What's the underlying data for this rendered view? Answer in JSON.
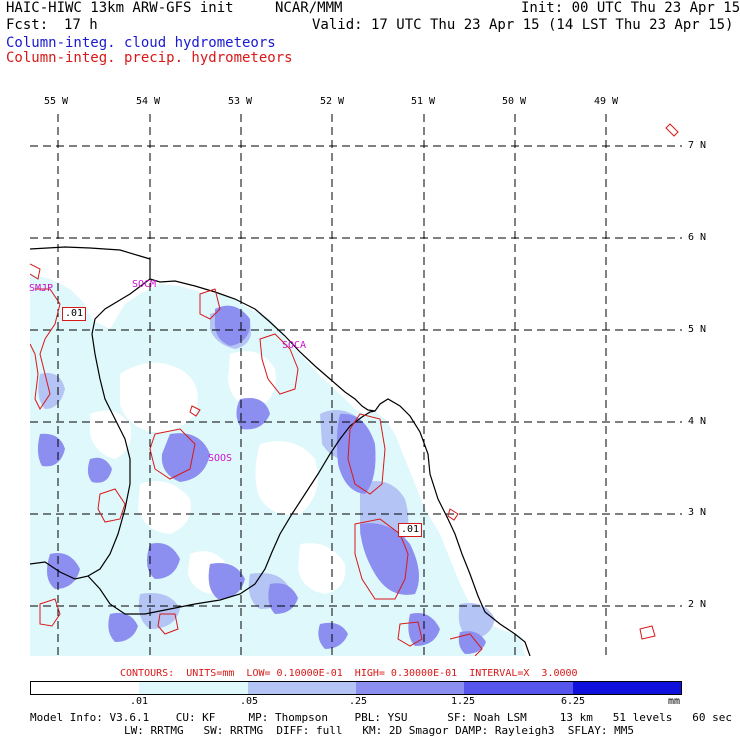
{
  "header": {
    "title": "HAIC-HIWC 13km ARW-GFS init",
    "org": "NCAR/MMM",
    "init": "Init: 00 UTC Thu 23 Apr 15",
    "fcst_label": "Fcst:",
    "fcst_value": "17 h",
    "valid": "Valid: 17 UTC Thu 23 Apr 15 (14 LST Thu 23 Apr 15)",
    "cloud_label": "Column-integ. cloud hydrometeors",
    "precip_label": "Column-integ. precip. hydrometeors"
  },
  "map": {
    "longitude_labels": [
      "55 W",
      "54 W",
      "53 W",
      "52 W",
      "51 W",
      "50 W",
      "49 W"
    ],
    "latitude_labels": [
      "7 N",
      "6 N",
      "5 N",
      "4 N",
      "3 N",
      "2 N"
    ],
    "stations": [
      "SMJP",
      "SOCM",
      "SOCA",
      "SOOS"
    ],
    "contour_labels": [
      ".01",
      ".01"
    ],
    "colors": {
      "border": "#000000",
      "grid": "#000000",
      "precip_contour": "#d81818",
      "station_text": "#cc11cc",
      "shade_1": "#dff8fb",
      "shade_2": "#b4c4f4",
      "shade_3": "#8c8ff0"
    }
  },
  "footer": {
    "contours": "CONTOURS:  UNITS=mm  LOW= 0.10000E-01  HIGH= 0.30000E-01  INTERVAL=X  3.0000",
    "colorbar": {
      "ticks": [
        ".01",
        ".05",
        ".25",
        "1.25",
        "6.25"
      ],
      "units": "mm",
      "colors": [
        "#ffffff",
        "#dff8fb",
        "#b4c4f4",
        "#8c8ff0",
        "#5555ee",
        "#1111dd"
      ]
    },
    "model_info_1": "Model Info: V3.6.1    CU: KF     MP: Thompson    PBL: YSU      SF: Noah LSM     13 km   51 levels   60 sec",
    "model_info_2": "LW: RRTMG   SW: RRTMG  DIFF: full   KM: 2D Smagor DAMP: Rayleigh3  SFLAY: MM5"
  }
}
